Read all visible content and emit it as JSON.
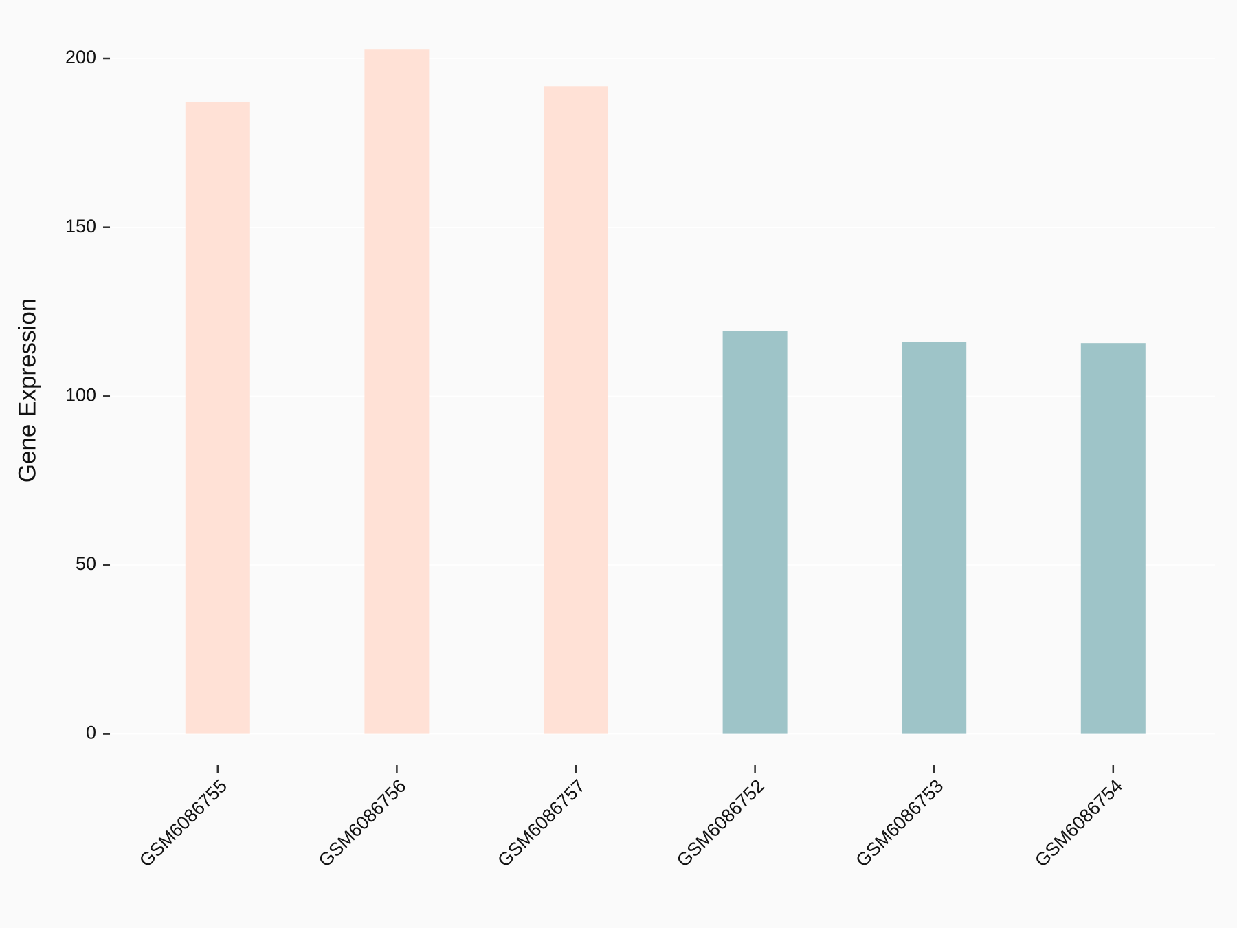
{
  "chart_data": {
    "type": "bar",
    "y_label": "Gene Expression",
    "categories": [
      "GSM6086755",
      "GSM6086756",
      "GSM6086757",
      "GSM6086752",
      "GSM6086753",
      "GSM6086754"
    ],
    "values": [
      187.1,
      202.6,
      191.8,
      119.2,
      116.1,
      115.7
    ],
    "colors": [
      "#FFE1D6",
      "#FFE1D6",
      "#FFE1D6",
      "#9EC4C8",
      "#9EC4C8",
      "#9EC4C8"
    ],
    "ylim": [
      -7,
      208
    ],
    "yticks": [
      0,
      50,
      100,
      150,
      200
    ],
    "grid": true
  }
}
